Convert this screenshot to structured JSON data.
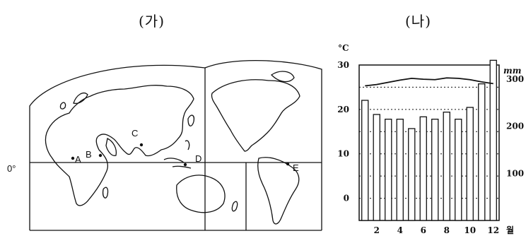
{
  "panel_a": {
    "label": "(가)",
    "equator_label": "0°",
    "locations": [
      "A",
      "B",
      "C",
      "D",
      "E"
    ]
  },
  "panel_b": {
    "label": "(나)"
  },
  "chart_data": {
    "type": "bar",
    "title": "",
    "temperature_unit": "°C",
    "precip_unit": "mm",
    "month_unit": "월",
    "months": [
      1,
      2,
      3,
      4,
      5,
      6,
      7,
      8,
      9,
      10,
      11,
      12
    ],
    "x_tick_labels": [
      "2",
      "4",
      "6",
      "8",
      "10",
      "12"
    ],
    "temperature": {
      "values": [
        25.3,
        25.6,
        26.1,
        26.6,
        27.0,
        26.8,
        26.7,
        27.1,
        27.0,
        26.7,
        26.2,
        25.8
      ],
      "ylim": [
        -5,
        30
      ],
      "ticks": [
        "30",
        "20",
        "10",
        "0"
      ]
    },
    "precipitation": {
      "values": [
        255,
        225,
        215,
        215,
        195,
        220,
        215,
        230,
        215,
        240,
        290,
        340
      ],
      "ylim": [
        0,
        330
      ],
      "ticks": [
        "300",
        "200",
        "100"
      ]
    },
    "grid": "dotted horizontal"
  }
}
